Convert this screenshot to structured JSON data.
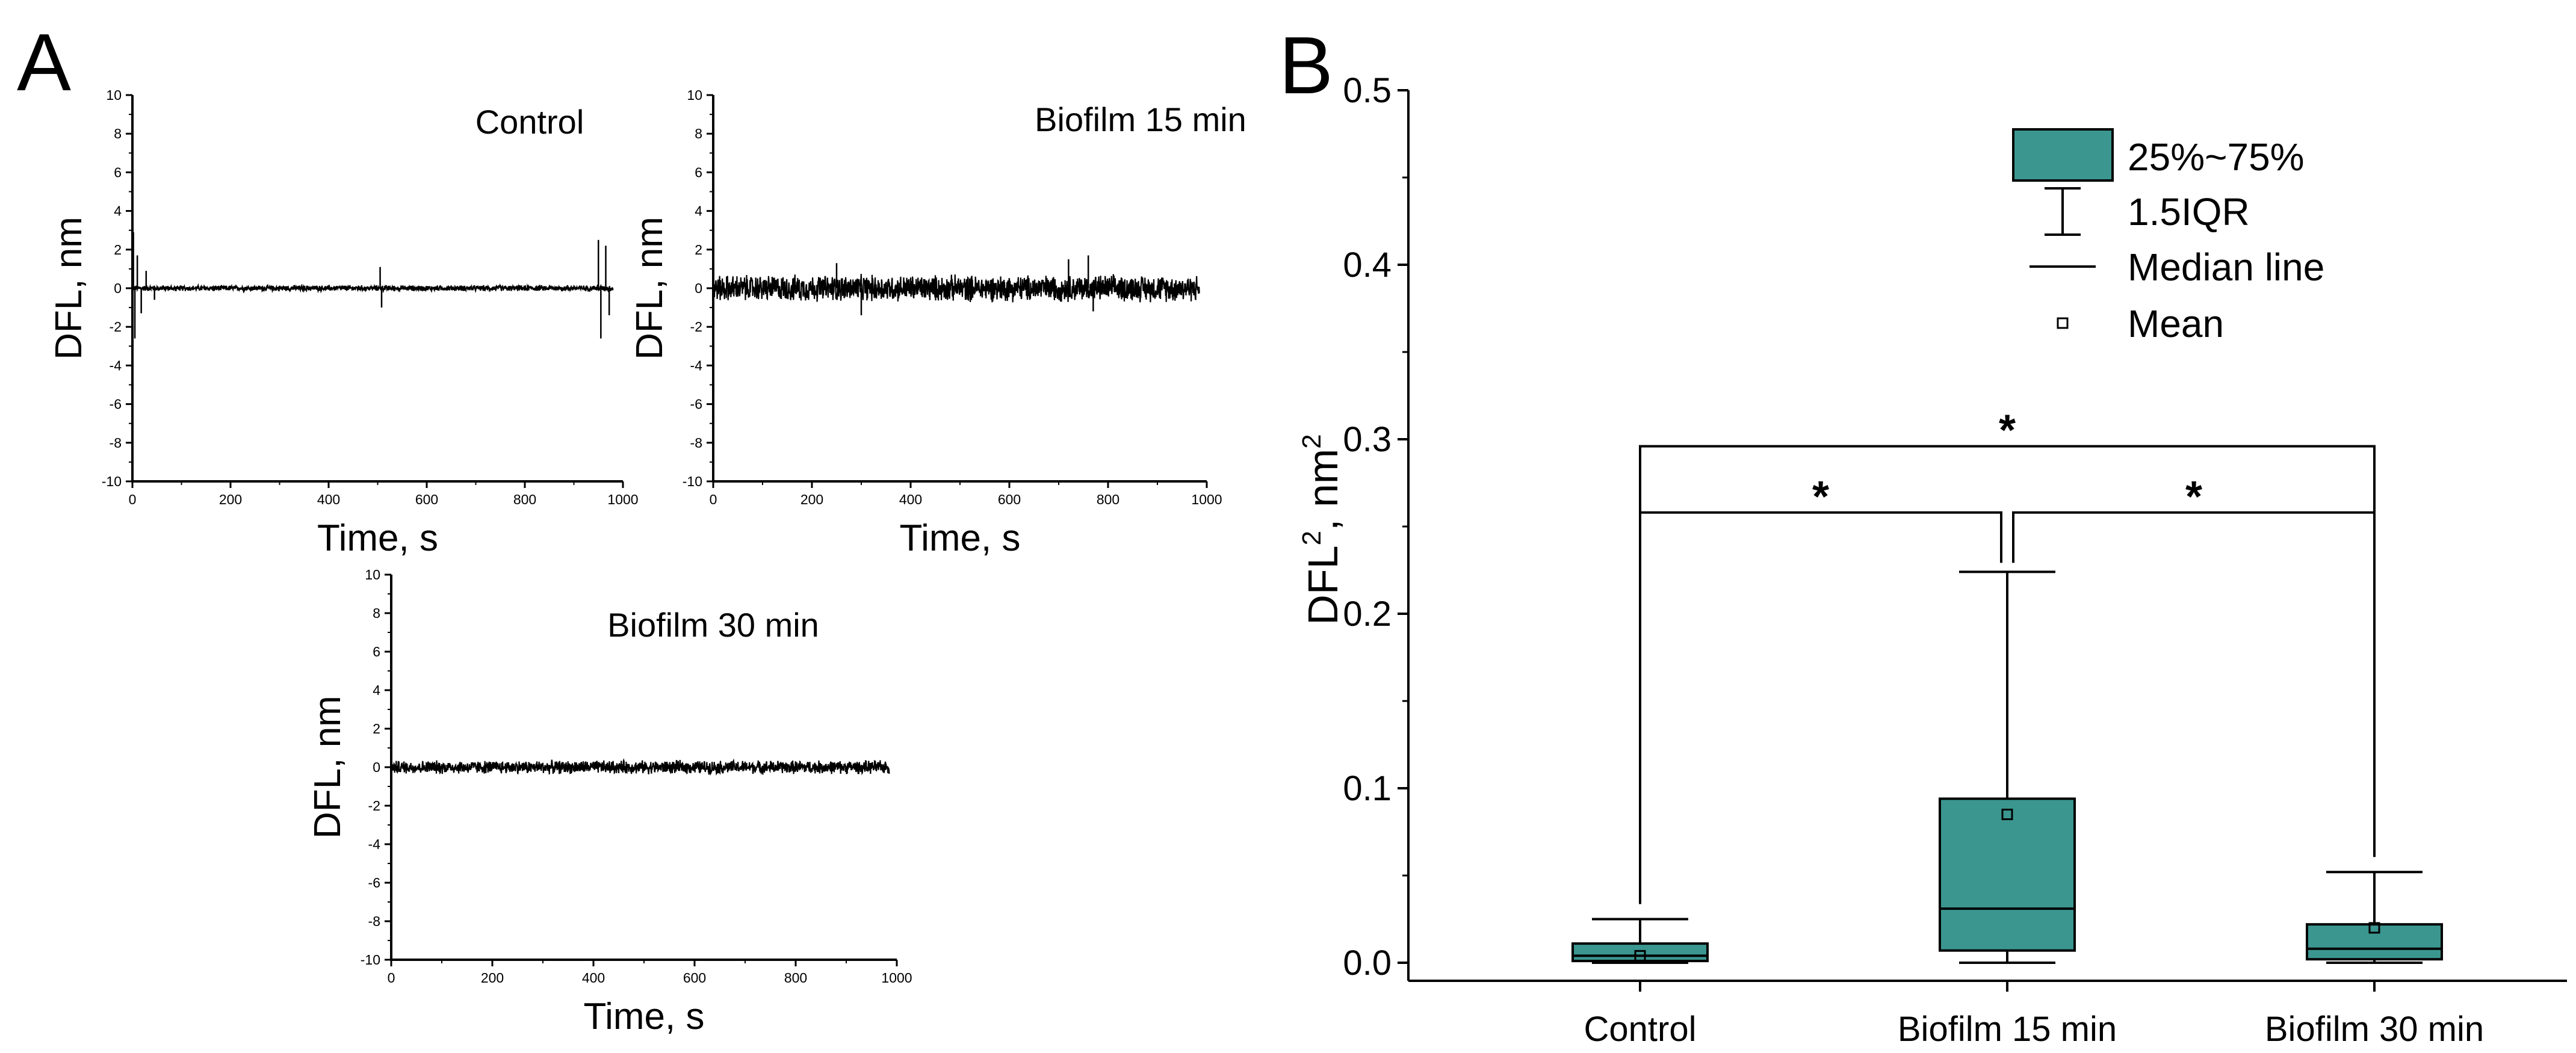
{
  "panels": {
    "a": "A",
    "b": "B"
  },
  "chart_data": [
    {
      "type": "line",
      "panel": "A",
      "title": "Control",
      "xlabel": "Time, s",
      "ylabel": "DFL, nm",
      "xlim": [
        0,
        1000
      ],
      "ylim": [
        -10,
        10
      ],
      "xticks": [
        0,
        200,
        400,
        600,
        800,
        1000
      ],
      "yticks": [
        -10,
        -8,
        -6,
        -4,
        -2,
        0,
        2,
        4,
        6,
        8,
        10
      ],
      "series": [
        {
          "name": "Control",
          "t_end": 980,
          "baseline_amplitude": 0.12,
          "spikes": [
            {
              "t": 2,
              "v": 2.9
            },
            {
              "t": 5,
              "v": -2.6
            },
            {
              "t": 10,
              "v": 1.7
            },
            {
              "t": 18,
              "v": -1.3
            },
            {
              "t": 28,
              "v": 0.9
            },
            {
              "t": 45,
              "v": -0.6
            },
            {
              "t": 505,
              "v": 1.1
            },
            {
              "t": 508,
              "v": -1.0
            },
            {
              "t": 950,
              "v": 2.5
            },
            {
              "t": 955,
              "v": -2.6
            },
            {
              "t": 965,
              "v": 2.2
            },
            {
              "t": 972,
              "v": -1.4
            }
          ]
        }
      ]
    },
    {
      "type": "line",
      "panel": "A",
      "title": "Biofilm 15 min",
      "xlabel": "Time, s",
      "ylabel": "DFL, nm",
      "xlim": [
        0,
        1000
      ],
      "ylim": [
        -10,
        10
      ],
      "xticks": [
        0,
        200,
        400,
        600,
        800,
        1000
      ],
      "yticks": [
        -10,
        -8,
        -6,
        -4,
        -2,
        0,
        2,
        4,
        6,
        8,
        10
      ],
      "series": [
        {
          "name": "Biofilm 15 min",
          "t_end": 985,
          "baseline_amplitude": 0.55,
          "spikes": [
            {
              "t": 250,
              "v": 1.3
            },
            {
              "t": 300,
              "v": -1.4
            },
            {
              "t": 720,
              "v": 1.5
            },
            {
              "t": 760,
              "v": 1.7
            },
            {
              "t": 770,
              "v": -1.2
            }
          ]
        }
      ]
    },
    {
      "type": "line",
      "panel": "A",
      "title": "Biofilm 30 min",
      "xlabel": "Time, s",
      "ylabel": "DFL, nm",
      "xlim": [
        0,
        1000
      ],
      "ylim": [
        -10,
        10
      ],
      "xticks": [
        0,
        200,
        400,
        600,
        800,
        1000
      ],
      "yticks": [
        -10,
        -8,
        -6,
        -4,
        -2,
        0,
        2,
        4,
        6,
        8,
        10
      ],
      "series": [
        {
          "name": "Biofilm 30 min",
          "t_end": 985,
          "baseline_amplitude": 0.28,
          "spikes": []
        }
      ]
    },
    {
      "type": "box",
      "panel": "B",
      "ylabel_base": "DFL",
      "ylabel_sup1": "2",
      "ylabel_mid": ", nm",
      "ylabel_sup2": "2",
      "ylim": [
        -0.01,
        0.5
      ],
      "yticks": [
        0.0,
        0.1,
        0.2,
        0.3,
        0.4,
        0.5
      ],
      "ytick_labels": [
        "0.0",
        "0.1",
        "0.2",
        "0.3",
        "0.4",
        "0.5"
      ],
      "categories": [
        "Control",
        "Biofilm 15 min",
        "Biofilm 30 min"
      ],
      "box_color": "#3b9690",
      "boxes": [
        {
          "q1": 0.001,
          "median": 0.004,
          "q3": 0.011,
          "whisker_low": 0.0,
          "whisker_high": 0.025,
          "mean": 0.004
        },
        {
          "q1": 0.007,
          "median": 0.031,
          "q3": 0.094,
          "whisker_low": 0.0,
          "whisker_high": 0.224,
          "mean": 0.085
        },
        {
          "q1": 0.002,
          "median": 0.008,
          "q3": 0.022,
          "whisker_low": 0.0,
          "whisker_high": 0.052,
          "mean": 0.02
        }
      ],
      "significance": [
        {
          "from": 0,
          "to": 2,
          "y": 0.296,
          "label": "*"
        },
        {
          "from": 0,
          "to": 1,
          "y": 0.258,
          "label": "*"
        },
        {
          "from": 1,
          "to": 2,
          "y": 0.258,
          "label": "*"
        }
      ],
      "legend": {
        "placement": "top-right",
        "items": [
          "25%~75%",
          "1.5IQR",
          "Median line",
          "Mean"
        ]
      }
    }
  ]
}
